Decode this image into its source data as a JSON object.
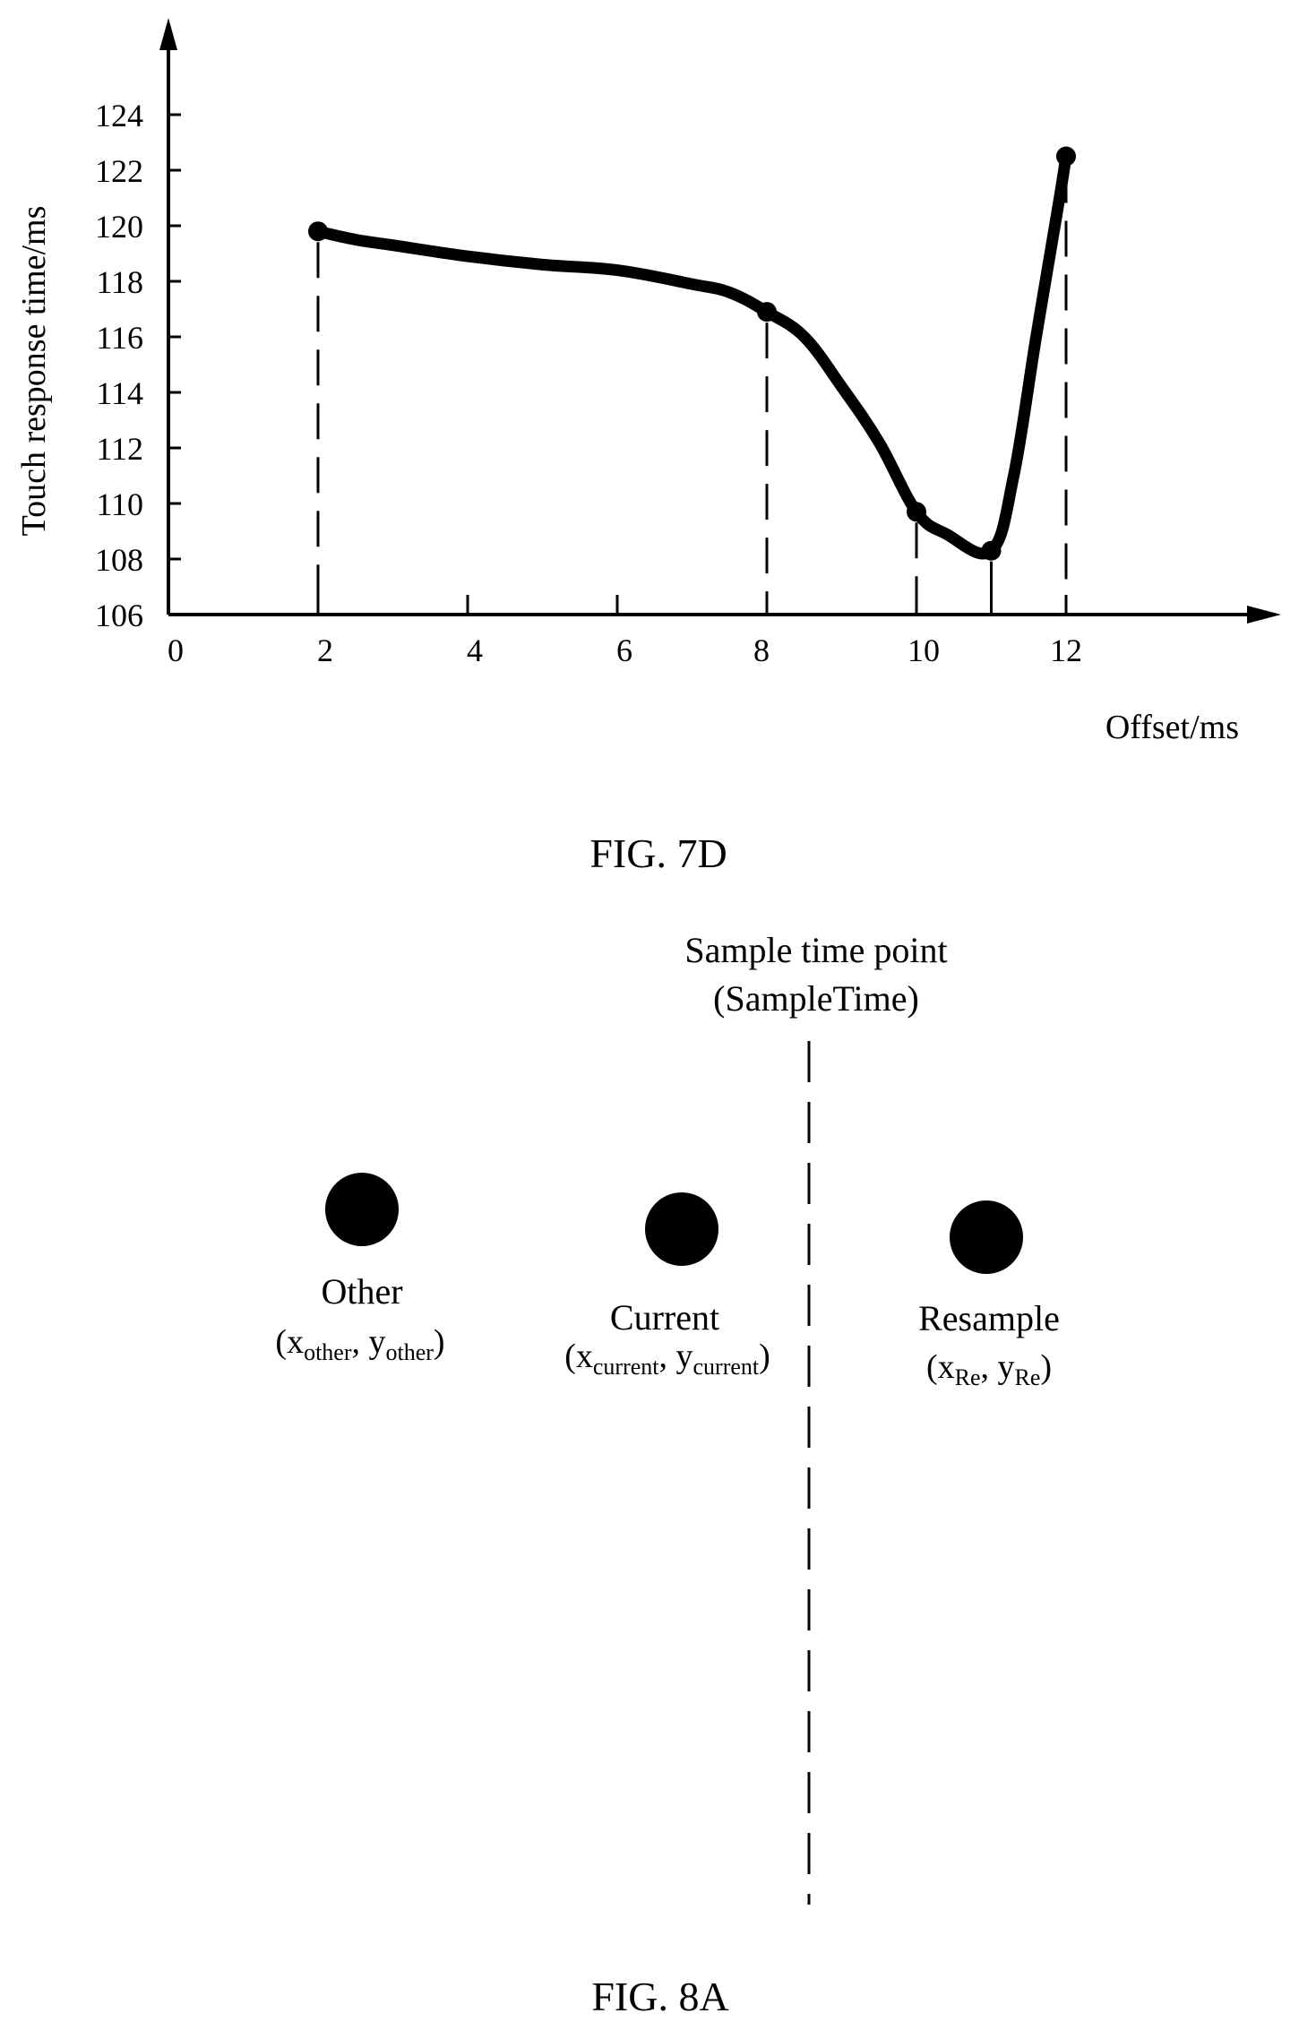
{
  "fig7d": {
    "caption": "FIG. 7D",
    "chart_data": {
      "type": "line",
      "title": "",
      "xlabel": "Offset/ms",
      "ylabel": "Touch response time/ms",
      "xlim": [
        0,
        14
      ],
      "ylim": [
        106,
        125
      ],
      "x_ticks": [
        0,
        2,
        4,
        6,
        8,
        10,
        11,
        12
      ],
      "x_tick_labels": [
        "0",
        "2",
        "4",
        "6",
        "8",
        "10",
        "12"
      ],
      "y_ticks": [
        106,
        108,
        110,
        112,
        114,
        116,
        118,
        120,
        122,
        124
      ],
      "y_tick_labels": [
        "106",
        "108",
        "110",
        "112",
        "114",
        "116",
        "118",
        "120",
        "122",
        "124"
      ],
      "grid": false,
      "series": [
        {
          "points": [
            {
              "x": 2,
              "y": 119.8
            },
            {
              "x": 8,
              "y": 116.9
            },
            {
              "x": 10,
              "y": 109.7
            },
            {
              "x": 11,
              "y": 108.3
            },
            {
              "x": 12,
              "y": 122.5
            }
          ],
          "curve": [
            [
              2,
              119.8
            ],
            [
              2.5,
              119.5
            ],
            [
              3,
              119.3
            ],
            [
              4,
              118.9
            ],
            [
              5,
              118.6
            ],
            [
              6,
              118.4
            ],
            [
              7,
              117.9
            ],
            [
              7.5,
              117.6
            ],
            [
              8,
              116.9
            ],
            [
              8.5,
              116.0
            ],
            [
              9,
              114.2
            ],
            [
              9.5,
              112.2
            ],
            [
              10,
              109.7
            ],
            [
              10.4,
              108.9
            ],
            [
              11,
              108.3
            ],
            [
              11.3,
              111.0
            ],
            [
              11.6,
              116.0
            ],
            [
              11.9,
              120.8
            ],
            [
              12,
              122.5
            ]
          ]
        }
      ],
      "drop_lines_at_x": [
        2,
        8,
        10,
        11,
        12
      ]
    }
  },
  "fig8a": {
    "caption": "FIG. 8A",
    "sample_label_line1": "Sample time point",
    "sample_label_line2": "(SampleTime)",
    "points": [
      {
        "name": "Other",
        "x_sub": "other",
        "y_sub": "other"
      },
      {
        "name": "Current",
        "x_sub": "current",
        "y_sub": "current"
      },
      {
        "name": "Resample",
        "x_sub": "Re",
        "y_sub": "Re"
      }
    ]
  }
}
